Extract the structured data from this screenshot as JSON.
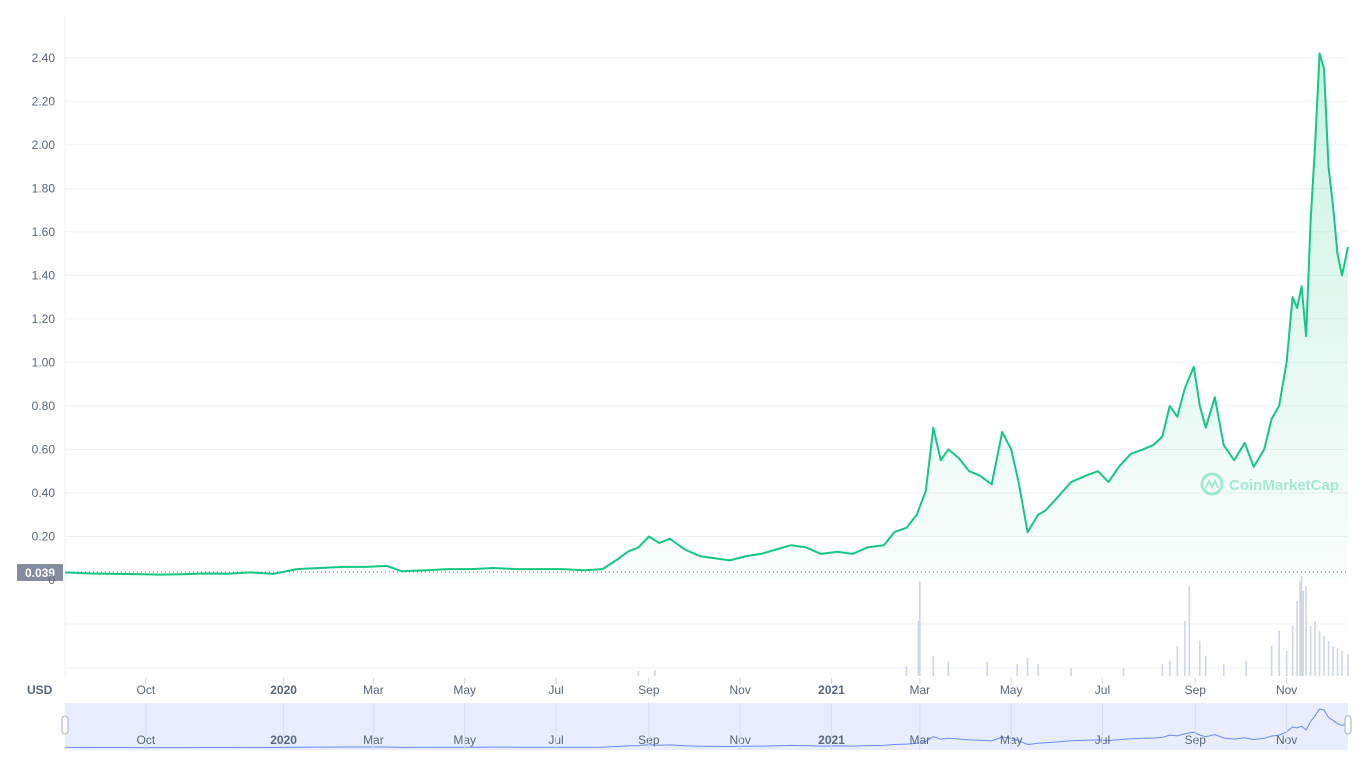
{
  "chart_data": {
    "type": "area",
    "currency_label": "USD",
    "current_price_label": "0.039",
    "watermark": "CoinMarketCap",
    "ylim": [
      0,
      2.5
    ],
    "y_ticks": [
      "0.20",
      "0.40",
      "0.60",
      "0.80",
      "1.00",
      "1.20",
      "1.40",
      "1.60",
      "1.80",
      "2.00",
      "2.20",
      "2.40"
    ],
    "y_zero_label": "0",
    "x_ticks": [
      {
        "label": "Oct",
        "date": "2019-10-01",
        "bold": false
      },
      {
        "label": "2020",
        "date": "2020-01-01",
        "bold": true
      },
      {
        "label": "Mar",
        "date": "2020-03-01",
        "bold": false
      },
      {
        "label": "May",
        "date": "2020-05-01",
        "bold": false
      },
      {
        "label": "Jul",
        "date": "2020-07-01",
        "bold": false
      },
      {
        "label": "Sep",
        "date": "2020-09-01",
        "bold": false
      },
      {
        "label": "Nov",
        "date": "2020-11-01",
        "bold": false
      },
      {
        "label": "2021",
        "date": "2021-01-01",
        "bold": true
      },
      {
        "label": "Mar",
        "date": "2021-03-01",
        "bold": false
      },
      {
        "label": "May",
        "date": "2021-05-01",
        "bold": false
      },
      {
        "label": "Jul",
        "date": "2021-07-01",
        "bold": false
      },
      {
        "label": "Sep",
        "date": "2021-09-01",
        "bold": false
      },
      {
        "label": "Nov",
        "date": "2021-11-01",
        "bold": false
      }
    ],
    "x_range": [
      "2019-08-08",
      "2021-12-12"
    ],
    "colors": {
      "up": "#16c784",
      "down": "#ea3943",
      "area_fill": "#16c784",
      "grid": "#eff2f5",
      "axis_text": "#58667e",
      "price_tag_bg": "#858ca2",
      "navigator_fill": "#e8eeff",
      "navigator_line": "#3861fb",
      "volume_bar": "#cfd6e4"
    },
    "series": [
      {
        "x": [
          "2019-08-08",
          "2019-08-25",
          "2019-09-10",
          "2019-09-25",
          "2019-10-10",
          "2019-10-25",
          "2019-11-10",
          "2019-11-25",
          "2019-12-10",
          "2019-12-25",
          "2020-01-10",
          "2020-01-25",
          "2020-02-10",
          "2020-02-25",
          "2020-03-10",
          "2020-03-20",
          "2020-04-05",
          "2020-04-20",
          "2020-05-05",
          "2020-05-20",
          "2020-06-05",
          "2020-06-20",
          "2020-07-05",
          "2020-07-20",
          "2020-08-01",
          "2020-08-10",
          "2020-08-18",
          "2020-08-25",
          "2020-09-01",
          "2020-09-08",
          "2020-09-15",
          "2020-09-25",
          "2020-10-05",
          "2020-10-15",
          "2020-10-25",
          "2020-11-05",
          "2020-11-15",
          "2020-11-25",
          "2020-12-05",
          "2020-12-15",
          "2020-12-25",
          "2021-01-05",
          "2021-01-15",
          "2021-01-25",
          "2021-02-05",
          "2021-02-12",
          "2021-02-20",
          "2021-02-27",
          "2021-03-05",
          "2021-03-10",
          "2021-03-15",
          "2021-03-20",
          "2021-03-27",
          "2021-04-03",
          "2021-04-10",
          "2021-04-18",
          "2021-04-25",
          "2021-05-01",
          "2021-05-06",
          "2021-05-12",
          "2021-05-19",
          "2021-05-24",
          "2021-06-01",
          "2021-06-10",
          "2021-06-20",
          "2021-06-28",
          "2021-07-05",
          "2021-07-12",
          "2021-07-20",
          "2021-07-28",
          "2021-08-04",
          "2021-08-10",
          "2021-08-15",
          "2021-08-20",
          "2021-08-25",
          "2021-08-31",
          "2021-09-04",
          "2021-09-08",
          "2021-09-14",
          "2021-09-20",
          "2021-09-27",
          "2021-10-04",
          "2021-10-10",
          "2021-10-17",
          "2021-10-22",
          "2021-10-27",
          "2021-11-01",
          "2021-11-05",
          "2021-11-08",
          "2021-11-11",
          "2021-11-14",
          "2021-11-17",
          "2021-11-20",
          "2021-11-23",
          "2021-11-26",
          "2021-11-29",
          "2021-12-02",
          "2021-12-05",
          "2021-12-08",
          "2021-12-12"
        ],
        "values": [
          0.035,
          0.03,
          0.028,
          0.027,
          0.025,
          0.026,
          0.03,
          0.029,
          0.035,
          0.028,
          0.05,
          0.055,
          0.06,
          0.06,
          0.065,
          0.04,
          0.045,
          0.05,
          0.05,
          0.055,
          0.05,
          0.05,
          0.05,
          0.045,
          0.05,
          0.09,
          0.13,
          0.15,
          0.2,
          0.17,
          0.19,
          0.14,
          0.11,
          0.1,
          0.09,
          0.11,
          0.12,
          0.14,
          0.16,
          0.15,
          0.12,
          0.13,
          0.12,
          0.15,
          0.16,
          0.22,
          0.24,
          0.3,
          0.41,
          0.7,
          0.55,
          0.6,
          0.56,
          0.5,
          0.48,
          0.44,
          0.68,
          0.6,
          0.45,
          0.22,
          0.3,
          0.32,
          0.38,
          0.45,
          0.48,
          0.5,
          0.45,
          0.52,
          0.58,
          0.6,
          0.62,
          0.66,
          0.8,
          0.75,
          0.88,
          0.98,
          0.8,
          0.7,
          0.84,
          0.62,
          0.55,
          0.63,
          0.52,
          0.6,
          0.74,
          0.8,
          1.0,
          1.3,
          1.25,
          1.35,
          1.12,
          1.65,
          2.0,
          2.42,
          2.35,
          1.9,
          1.72,
          1.5,
          1.4,
          1.53
        ]
      }
    ],
    "volume": {
      "x": [
        "2020-08-25",
        "2020-09-05",
        "2021-02-20",
        "2021-02-28",
        "2021-03-01",
        "2021-03-10",
        "2021-03-20",
        "2021-04-15",
        "2021-05-05",
        "2021-05-12",
        "2021-05-19",
        "2021-06-10",
        "2021-07-15",
        "2021-08-10",
        "2021-08-15",
        "2021-08-20",
        "2021-08-25",
        "2021-08-28",
        "2021-09-04",
        "2021-09-08",
        "2021-09-20",
        "2021-10-05",
        "2021-10-22",
        "2021-10-27",
        "2021-11-01",
        "2021-11-05",
        "2021-11-08",
        "2021-11-10",
        "2021-11-11",
        "2021-11-12",
        "2021-11-14",
        "2021-11-17",
        "2021-11-20",
        "2021-11-23",
        "2021-11-26",
        "2021-11-29",
        "2021-12-02",
        "2021-12-05",
        "2021-12-08",
        "2021-12-12"
      ],
      "values": [
        0.05,
        0.06,
        0.1,
        0.55,
        0.95,
        0.2,
        0.15,
        0.14,
        0.12,
        0.18,
        0.12,
        0.08,
        0.08,
        0.12,
        0.15,
        0.3,
        0.55,
        0.9,
        0.35,
        0.2,
        0.12,
        0.15,
        0.3,
        0.45,
        0.25,
        0.5,
        0.75,
        0.95,
        1.0,
        0.85,
        0.9,
        0.5,
        0.55,
        0.45,
        0.4,
        0.35,
        0.3,
        0.28,
        0.25,
        0.22
      ]
    },
    "grid": true,
    "legend": "none"
  }
}
